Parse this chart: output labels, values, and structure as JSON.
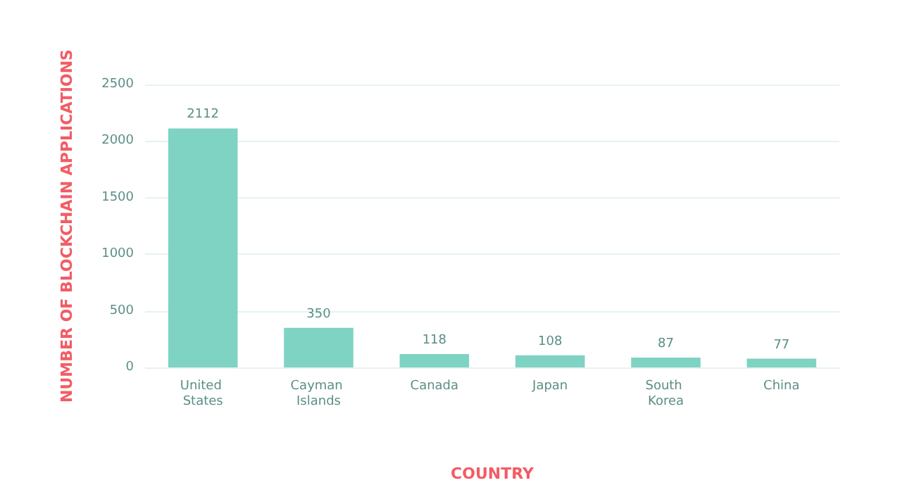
{
  "chart_data": {
    "type": "bar",
    "xlabel": "COUNTRY",
    "ylabel": "NUMBER OF BLOCKCHAIN APPLICATIONS",
    "categories": [
      "United States",
      "Cayman Islands",
      "Canada",
      "Japan",
      "South Korea",
      "China"
    ],
    "values": [
      2112,
      350,
      118,
      108,
      87,
      77
    ],
    "color": "#7fd3c3",
    "ylim": [
      0,
      2500
    ],
    "yticks": [
      0,
      500,
      1000,
      1500,
      2000,
      2500
    ],
    "grid": "y",
    "data_labels": true
  }
}
